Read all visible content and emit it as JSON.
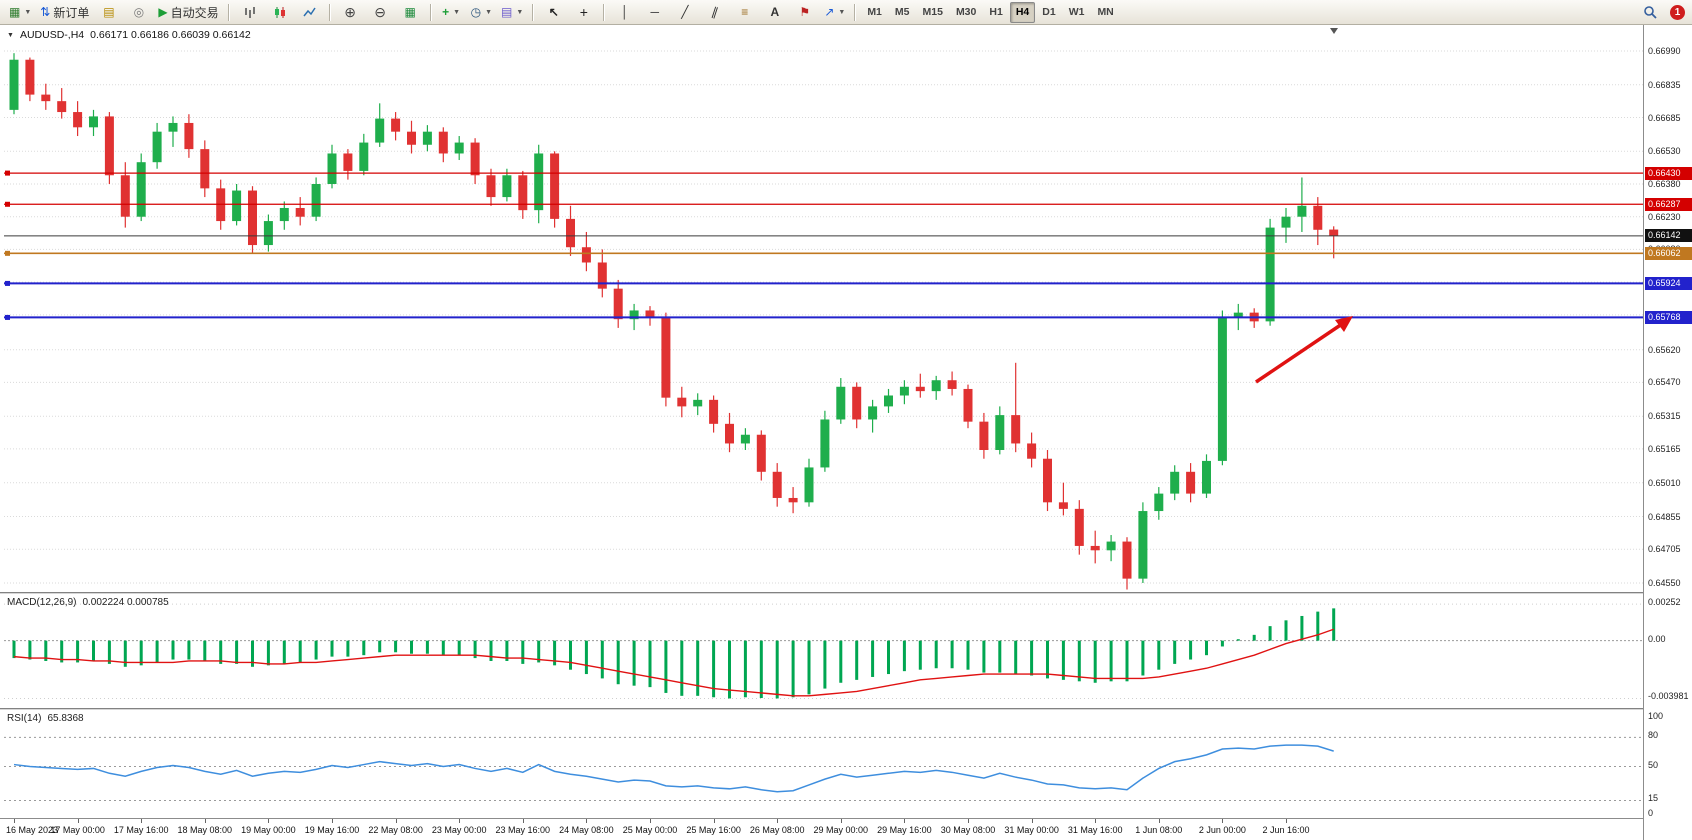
{
  "window": {
    "notification_count": "1"
  },
  "toolbar": {
    "new_order_label": "新订单",
    "auto_trading_label": "自动交易",
    "timeframes": [
      "M1",
      "M5",
      "M15",
      "M30",
      "H1",
      "H4",
      "D1",
      "W1",
      "MN"
    ],
    "active_timeframe": "H4"
  },
  "chart": {
    "symbol_header": "AUDUSD-,H4",
    "ohlc_text": "0.66171 0.66186 0.66039 0.66142",
    "y_axis_labels": [
      "0.66990",
      "0.66835",
      "0.66685",
      "0.66530",
      "0.66380",
      "0.66230",
      "0.66080",
      "0.65930",
      "0.65780",
      "0.65620",
      "0.65470",
      "0.65315",
      "0.65165",
      "0.65010",
      "0.64855",
      "0.64705",
      "0.64550"
    ],
    "price_lines": [
      {
        "label": "0.66430",
        "value": 0.6643,
        "color": "#D40000",
        "width": 1.2,
        "current": false
      },
      {
        "label": "0.66287",
        "value": 0.66287,
        "color": "#D40000",
        "width": 1.2,
        "current": false
      },
      {
        "label": "0.66142",
        "value": 0.66142,
        "color": "#3a3a3a",
        "width": 1,
        "current": true
      },
      {
        "label": "0.66062",
        "value": 0.66062,
        "color": "#C07820",
        "width": 1.6,
        "current": false
      },
      {
        "label": "0.65924",
        "value": 0.65924,
        "color": "#2222CC",
        "width": 2,
        "current": false
      },
      {
        "label": "0.65768",
        "value": 0.65768,
        "color": "#2222CC",
        "width": 2,
        "current": false
      }
    ],
    "x_axis_labels": [
      "16 May 2023",
      "17 May 00:00",
      "17 May 16:00",
      "18 May 08:00",
      "19 May 00:00",
      "19 May 16:00",
      "22 May 08:00",
      "23 May 00:00",
      "23 May 16:00",
      "24 May 08:00",
      "25 May 00:00",
      "25 May 16:00",
      "26 May 08:00",
      "29 May 00:00",
      "29 May 16:00",
      "30 May 08:00",
      "31 May 00:00",
      "31 May 16:00",
      "1 Jun 08:00",
      "2 Jun 00:00",
      "2 Jun 16:00"
    ],
    "colors": {
      "up": "#1FAE4C",
      "down": "#E03232",
      "grid": "#DADADA",
      "arrow": "#E01212"
    }
  },
  "chart_data": {
    "type": "candlestick",
    "title": "AUDUSD H4",
    "price_range": [
      0.6455,
      0.6699
    ],
    "candles": [
      [
        0.6672,
        0.6698,
        0.667,
        0.6695
      ],
      [
        0.6695,
        0.6696,
        0.6676,
        0.6679
      ],
      [
        0.6679,
        0.6684,
        0.6672,
        0.6676
      ],
      [
        0.6676,
        0.6682,
        0.6668,
        0.6671
      ],
      [
        0.6671,
        0.6676,
        0.666,
        0.6664
      ],
      [
        0.6664,
        0.6672,
        0.666,
        0.6669
      ],
      [
        0.6669,
        0.6671,
        0.6638,
        0.6642
      ],
      [
        0.6642,
        0.6648,
        0.6618,
        0.6623
      ],
      [
        0.6623,
        0.6652,
        0.6621,
        0.6648
      ],
      [
        0.6648,
        0.6666,
        0.6645,
        0.6662
      ],
      [
        0.6662,
        0.6669,
        0.6655,
        0.6666
      ],
      [
        0.6666,
        0.667,
        0.665,
        0.6654
      ],
      [
        0.6654,
        0.6658,
        0.6632,
        0.6636
      ],
      [
        0.6636,
        0.664,
        0.6617,
        0.6621
      ],
      [
        0.6621,
        0.6638,
        0.6619,
        0.6635
      ],
      [
        0.6635,
        0.6637,
        0.6606,
        0.661
      ],
      [
        0.661,
        0.6624,
        0.6607,
        0.6621
      ],
      [
        0.6621,
        0.663,
        0.6617,
        0.6627
      ],
      [
        0.6627,
        0.6632,
        0.6619,
        0.6623
      ],
      [
        0.6623,
        0.6641,
        0.6621,
        0.6638
      ],
      [
        0.6638,
        0.6656,
        0.6636,
        0.6652
      ],
      [
        0.6652,
        0.6654,
        0.664,
        0.6644
      ],
      [
        0.6644,
        0.6661,
        0.6642,
        0.6657
      ],
      [
        0.6657,
        0.6675,
        0.6655,
        0.6668
      ],
      [
        0.6668,
        0.6671,
        0.6658,
        0.6662
      ],
      [
        0.6662,
        0.6667,
        0.6652,
        0.6656
      ],
      [
        0.6656,
        0.6665,
        0.6653,
        0.6662
      ],
      [
        0.6662,
        0.6664,
        0.6648,
        0.6652
      ],
      [
        0.6652,
        0.666,
        0.6649,
        0.6657
      ],
      [
        0.6657,
        0.6659,
        0.6638,
        0.6642
      ],
      [
        0.6642,
        0.6645,
        0.6628,
        0.6632
      ],
      [
        0.6632,
        0.6645,
        0.663,
        0.6642
      ],
      [
        0.6642,
        0.6644,
        0.6622,
        0.6626
      ],
      [
        0.6626,
        0.6656,
        0.662,
        0.6652
      ],
      [
        0.6652,
        0.6653,
        0.6618,
        0.6622
      ],
      [
        0.6622,
        0.6628,
        0.6605,
        0.6609
      ],
      [
        0.6609,
        0.6616,
        0.6598,
        0.6602
      ],
      [
        0.6602,
        0.6608,
        0.6586,
        0.659
      ],
      [
        0.659,
        0.6594,
        0.6572,
        0.6576
      ],
      [
        0.6576,
        0.6583,
        0.6571,
        0.658
      ],
      [
        0.658,
        0.6582,
        0.6573,
        0.6577
      ],
      [
        0.6577,
        0.6579,
        0.6536,
        0.654
      ],
      [
        0.654,
        0.6545,
        0.6531,
        0.6536
      ],
      [
        0.6536,
        0.6542,
        0.6532,
        0.6539
      ],
      [
        0.6539,
        0.6541,
        0.6524,
        0.6528
      ],
      [
        0.6528,
        0.6533,
        0.6515,
        0.6519
      ],
      [
        0.6519,
        0.6526,
        0.6516,
        0.6523
      ],
      [
        0.6523,
        0.6525,
        0.6502,
        0.6506
      ],
      [
        0.6506,
        0.651,
        0.649,
        0.6494
      ],
      [
        0.6494,
        0.6499,
        0.6487,
        0.6492
      ],
      [
        0.6492,
        0.6512,
        0.649,
        0.6508
      ],
      [
        0.6508,
        0.6534,
        0.6506,
        0.653
      ],
      [
        0.653,
        0.6549,
        0.6528,
        0.6545
      ],
      [
        0.6545,
        0.6547,
        0.6526,
        0.653
      ],
      [
        0.653,
        0.6539,
        0.6524,
        0.6536
      ],
      [
        0.6536,
        0.6544,
        0.6533,
        0.6541
      ],
      [
        0.6541,
        0.6548,
        0.6537,
        0.6545
      ],
      [
        0.6545,
        0.6551,
        0.654,
        0.6543
      ],
      [
        0.6543,
        0.655,
        0.6539,
        0.6548
      ],
      [
        0.6548,
        0.6552,
        0.6541,
        0.6544
      ],
      [
        0.6544,
        0.6546,
        0.6526,
        0.6529
      ],
      [
        0.6529,
        0.6533,
        0.6512,
        0.6516
      ],
      [
        0.6516,
        0.6536,
        0.6514,
        0.6532
      ],
      [
        0.6532,
        0.6556,
        0.6515,
        0.6519
      ],
      [
        0.6519,
        0.6524,
        0.6508,
        0.6512
      ],
      [
        0.6512,
        0.6516,
        0.6488,
        0.6492
      ],
      [
        0.6492,
        0.6501,
        0.6486,
        0.6489
      ],
      [
        0.6489,
        0.6493,
        0.6468,
        0.6472
      ],
      [
        0.6472,
        0.6479,
        0.6464,
        0.647
      ],
      [
        0.647,
        0.6477,
        0.6465,
        0.6474
      ],
      [
        0.6474,
        0.6476,
        0.6452,
        0.6457
      ],
      [
        0.6457,
        0.6492,
        0.6455,
        0.6488
      ],
      [
        0.6488,
        0.6499,
        0.6484,
        0.6496
      ],
      [
        0.6496,
        0.6509,
        0.6493,
        0.6506
      ],
      [
        0.6506,
        0.651,
        0.6492,
        0.6496
      ],
      [
        0.6496,
        0.6514,
        0.6494,
        0.6511
      ],
      [
        0.6511,
        0.658,
        0.6509,
        0.6577
      ],
      [
        0.6577,
        0.6583,
        0.6571,
        0.6579
      ],
      [
        0.6579,
        0.6581,
        0.6572,
        0.6575
      ],
      [
        0.6575,
        0.6622,
        0.6573,
        0.6618
      ],
      [
        0.6618,
        0.6627,
        0.6611,
        0.6623
      ],
      [
        0.6623,
        0.6641,
        0.6616,
        0.6628
      ],
      [
        0.6628,
        0.6632,
        0.661,
        0.6617
      ],
      [
        0.66171,
        0.66186,
        0.66039,
        0.66142
      ]
    ],
    "macd": {
      "label": "MACD(12,26,9)",
      "values_text": "0.002224 0.000785",
      "scale_labels": [
        "0.00252",
        "0.00",
        "-0.003981"
      ],
      "scale_values": [
        0.00252,
        0,
        -0.003981
      ],
      "hist_color": "#00A651",
      "signal_color": "#E01212",
      "histogram": [
        -0.0012,
        -0.0013,
        -0.0014,
        -0.0015,
        -0.0015,
        -0.0014,
        -0.0016,
        -0.0018,
        -0.0017,
        -0.0015,
        -0.0013,
        -0.0013,
        -0.0014,
        -0.0016,
        -0.0016,
        -0.0018,
        -0.0017,
        -0.0016,
        -0.0015,
        -0.0013,
        -0.0011,
        -0.0011,
        -0.001,
        -0.0008,
        -0.0008,
        -0.0009,
        -0.0009,
        -0.001,
        -0.001,
        -0.0012,
        -0.0014,
        -0.0014,
        -0.0016,
        -0.0015,
        -0.0017,
        -0.002,
        -0.0023,
        -0.0026,
        -0.003,
        -0.0031,
        -0.0032,
        -0.0036,
        -0.0038,
        -0.0038,
        -0.0039,
        -0.00398,
        -0.0039,
        -0.00395,
        -0.00398,
        -0.0039,
        -0.0037,
        -0.0033,
        -0.0029,
        -0.0027,
        -0.0025,
        -0.0023,
        -0.0021,
        -0.002,
        -0.0019,
        -0.0019,
        -0.002,
        -0.0022,
        -0.0022,
        -0.0023,
        -0.0024,
        -0.0026,
        -0.0027,
        -0.0028,
        -0.0029,
        -0.0028,
        -0.0028,
        -0.0024,
        -0.002,
        -0.0016,
        -0.0013,
        -0.001,
        -0.0004,
        0.0001,
        0.0004,
        0.001,
        0.0014,
        0.0017,
        0.002,
        0.002224
      ],
      "signal": [
        -0.0011,
        -0.0012,
        -0.0012,
        -0.0013,
        -0.0013,
        -0.0014,
        -0.0014,
        -0.0015,
        -0.0015,
        -0.0015,
        -0.0015,
        -0.0014,
        -0.0014,
        -0.0014,
        -0.0015,
        -0.0015,
        -0.0016,
        -0.0016,
        -0.0015,
        -0.0015,
        -0.0014,
        -0.0013,
        -0.0012,
        -0.0011,
        -0.001,
        -0.001,
        -0.001,
        -0.001,
        -0.001,
        -0.001,
        -0.0011,
        -0.0012,
        -0.0012,
        -0.0013,
        -0.0014,
        -0.0015,
        -0.0017,
        -0.0019,
        -0.0021,
        -0.0023,
        -0.0025,
        -0.0027,
        -0.0029,
        -0.0031,
        -0.0033,
        -0.0034,
        -0.0035,
        -0.0036,
        -0.0037,
        -0.0038,
        -0.0038,
        -0.0037,
        -0.0036,
        -0.0035,
        -0.0033,
        -0.0031,
        -0.0029,
        -0.0027,
        -0.0026,
        -0.0025,
        -0.0024,
        -0.0023,
        -0.0023,
        -0.0023,
        -0.0023,
        -0.0023,
        -0.0024,
        -0.0025,
        -0.0026,
        -0.0026,
        -0.0026,
        -0.0026,
        -0.0025,
        -0.0023,
        -0.0021,
        -0.0019,
        -0.0016,
        -0.0013,
        -0.001,
        -0.0006,
        -0.0002,
        0.0001,
        0.0004,
        0.000785
      ]
    },
    "rsi": {
      "label": "RSI(14)",
      "value_text": "65.8368",
      "scale_labels": [
        "100",
        "80",
        "50",
        "15",
        "0"
      ],
      "scale_values": [
        100,
        80,
        50,
        15,
        0
      ],
      "levels": [
        80,
        50,
        15
      ],
      "color": "#3E8EDE",
      "series": [
        52,
        50,
        49,
        48,
        47,
        48,
        43,
        40,
        45,
        49,
        51,
        49,
        45,
        42,
        46,
        40,
        43,
        45,
        44,
        47,
        51,
        49,
        52,
        55,
        53,
        51,
        53,
        50,
        52,
        48,
        45,
        48,
        44,
        52,
        45,
        42,
        40,
        37,
        34,
        36,
        35,
        30,
        29,
        30,
        28,
        27,
        29,
        26,
        24,
        25,
        31,
        37,
        42,
        39,
        41,
        43,
        45,
        44,
        46,
        44,
        41,
        38,
        43,
        39,
        36,
        32,
        31,
        28,
        27,
        28,
        26,
        38,
        48,
        55,
        58,
        62,
        68,
        69,
        68,
        71,
        72,
        72,
        71,
        65.84
      ]
    }
  }
}
